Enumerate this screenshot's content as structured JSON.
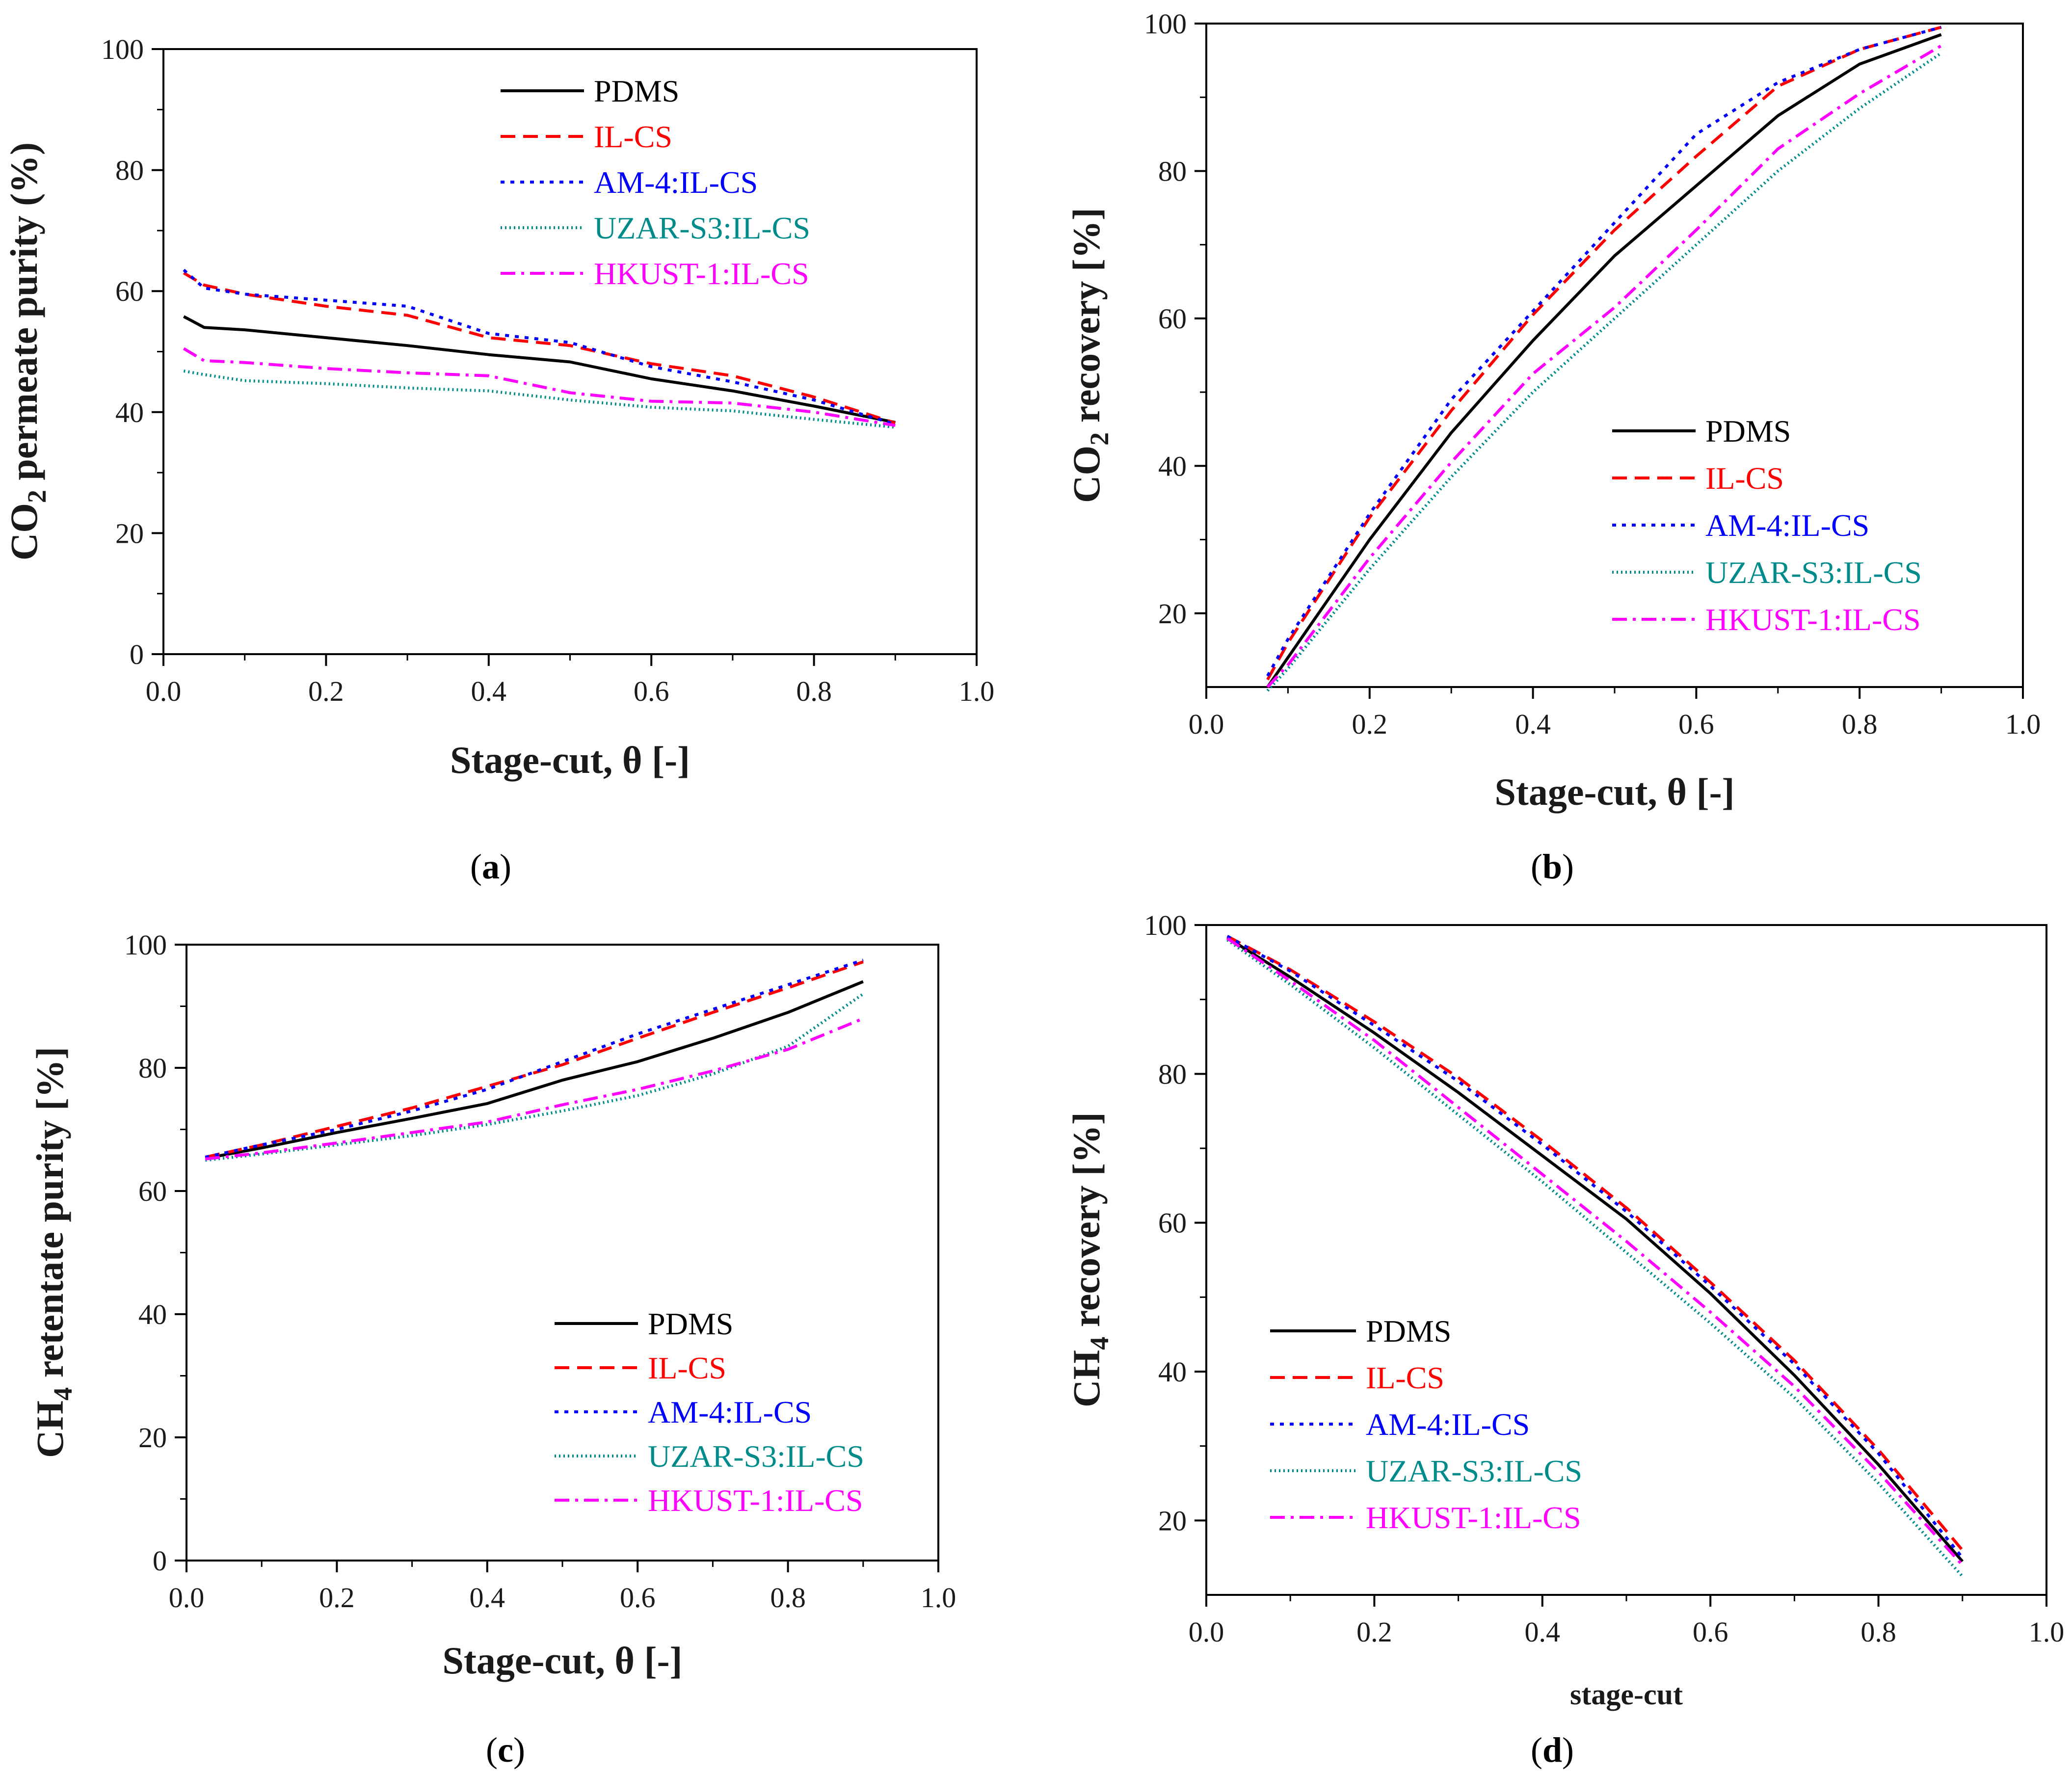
{
  "figure": {
    "captions": [
      {
        "pre": "(",
        "letter": "a",
        "post": ")"
      },
      {
        "pre": "(",
        "letter": "b",
        "post": ")"
      },
      {
        "pre": "(",
        "letter": "c",
        "post": ")"
      },
      {
        "pre": "(",
        "letter": "d",
        "post": ")"
      }
    ]
  },
  "chart_data": [
    {
      "type": "line",
      "panel": "a",
      "title": "",
      "xlabel": "Stage-cut, θ [-]",
      "ylabel": {
        "pre": "CO",
        "sub": "2",
        "post": " permeate purity (%)"
      },
      "xlim": [
        0.0,
        1.0
      ],
      "ylim": [
        0,
        100
      ],
      "xticks": [
        "0.0",
        "0.2",
        "0.4",
        "0.6",
        "0.8",
        "1.0"
      ],
      "yticks": [
        "0",
        "20",
        "40",
        "60",
        "80",
        "100"
      ],
      "legend_position": "top-center",
      "series": [
        {
          "name": "PDMS",
          "color": "#000000",
          "dash": "solid",
          "x": [
            0.025,
            0.05,
            0.1,
            0.2,
            0.3,
            0.4,
            0.5,
            0.6,
            0.7,
            0.8,
            0.9
          ],
          "y": [
            55.8,
            54.0,
            53.6,
            52.3,
            51.0,
            49.5,
            48.3,
            45.5,
            43.5,
            41.0,
            38.3
          ]
        },
        {
          "name": "IL-CS",
          "color": "#ff0000",
          "dash": "dash",
          "x": [
            0.025,
            0.05,
            0.1,
            0.2,
            0.3,
            0.4,
            0.5,
            0.6,
            0.7,
            0.8,
            0.9
          ],
          "y": [
            63.0,
            61.0,
            59.5,
            57.5,
            56.0,
            52.3,
            51.0,
            48.0,
            46.0,
            42.5,
            38.2
          ]
        },
        {
          "name": "AM-4:IL-CS",
          "color": "#0000ff",
          "dash": "dot",
          "x": [
            0.025,
            0.05,
            0.1,
            0.2,
            0.3,
            0.4,
            0.5,
            0.6,
            0.7,
            0.8,
            0.9
          ],
          "y": [
            63.5,
            60.5,
            59.5,
            58.5,
            57.5,
            53.0,
            51.5,
            47.5,
            45.0,
            42.0,
            38.0
          ]
        },
        {
          "name": "UZAR-S3:IL-CS",
          "color": "#008b8b",
          "dash": "fine-dot",
          "x": [
            0.025,
            0.05,
            0.1,
            0.2,
            0.3,
            0.4,
            0.5,
            0.6,
            0.7,
            0.8,
            0.9
          ],
          "y": [
            46.8,
            46.2,
            45.2,
            44.7,
            44.0,
            43.5,
            42.0,
            40.8,
            40.2,
            38.8,
            37.5
          ]
        },
        {
          "name": "HKUST-1:IL-CS",
          "color": "#ff00ff",
          "dash": "dashdot",
          "x": [
            0.025,
            0.05,
            0.1,
            0.2,
            0.3,
            0.4,
            0.5,
            0.6,
            0.7,
            0.8,
            0.9
          ],
          "y": [
            50.5,
            48.5,
            48.2,
            47.2,
            46.5,
            46.0,
            43.2,
            41.8,
            41.5,
            40.0,
            37.8
          ]
        }
      ]
    },
    {
      "type": "line",
      "panel": "b",
      "title": "",
      "xlabel": "Stage-cut, θ [-]",
      "ylabel": {
        "pre": "CO",
        "sub": "2",
        "post": " recovery [%]"
      },
      "xlim": [
        0.0,
        1.0
      ],
      "ylim": [
        10,
        100
      ],
      "xticks": [
        "0.0",
        "0.2",
        "0.4",
        "0.6",
        "0.8",
        "1.0"
      ],
      "yticks": [
        "20",
        "40",
        "60",
        "80",
        "100"
      ],
      "legend_position": "middle-right",
      "series": [
        {
          "name": "PDMS",
          "color": "#000000",
          "dash": "solid",
          "x": [
            0.075,
            0.1,
            0.2,
            0.3,
            0.4,
            0.5,
            0.6,
            0.7,
            0.8,
            0.9
          ],
          "y": [
            10.0,
            14.0,
            30.0,
            44.5,
            57.0,
            68.5,
            78.0,
            87.5,
            94.5,
            98.5
          ]
        },
        {
          "name": "IL-CS",
          "color": "#ff0000",
          "dash": "dash",
          "x": [
            0.075,
            0.1,
            0.2,
            0.3,
            0.4,
            0.5,
            0.6,
            0.7,
            0.8,
            0.9
          ],
          "y": [
            11.0,
            16.0,
            33.0,
            47.5,
            60.5,
            72.0,
            82.0,
            91.5,
            96.5,
            99.5
          ]
        },
        {
          "name": "AM-4:IL-CS",
          "color": "#0000ff",
          "dash": "dot",
          "x": [
            0.075,
            0.1,
            0.2,
            0.3,
            0.4,
            0.5,
            0.6,
            0.7,
            0.8,
            0.9
          ],
          "y": [
            11.5,
            16.5,
            33.5,
            49.0,
            61.0,
            73.0,
            85.0,
            92.0,
            96.5,
            99.5
          ]
        },
        {
          "name": "UZAR-S3:IL-CS",
          "color": "#008b8b",
          "dash": "fine-dot",
          "x": [
            0.075,
            0.1,
            0.2,
            0.3,
            0.4,
            0.5,
            0.6,
            0.7,
            0.8,
            0.9
          ],
          "y": [
            9.5,
            12.5,
            26.0,
            38.5,
            50.0,
            60.0,
            70.0,
            80.0,
            88.5,
            96.0
          ]
        },
        {
          "name": "HKUST-1:IL-CS",
          "color": "#ff00ff",
          "dash": "dashdot",
          "x": [
            0.075,
            0.1,
            0.2,
            0.3,
            0.4,
            0.5,
            0.6,
            0.7,
            0.8,
            0.9
          ],
          "y": [
            10.0,
            13.0,
            27.5,
            40.5,
            52.5,
            61.5,
            72.0,
            83.0,
            90.5,
            97.0
          ]
        }
      ]
    },
    {
      "type": "line",
      "panel": "c",
      "title": "",
      "xlabel": "Stage-cut, θ [-]",
      "ylabel": {
        "pre": "CH",
        "sub": "4",
        "post": " retentate purity [%]"
      },
      "xlim": [
        0.0,
        1.0
      ],
      "ylim": [
        0,
        100
      ],
      "xticks": [
        "0.0",
        "0.2",
        "0.4",
        "0.6",
        "0.8",
        "1.0"
      ],
      "yticks": [
        "0",
        "20",
        "40",
        "60",
        "80",
        "100"
      ],
      "legend_position": "bottom-right",
      "series": [
        {
          "name": "PDMS",
          "color": "#000000",
          "dash": "solid",
          "x": [
            0.025,
            0.1,
            0.2,
            0.3,
            0.4,
            0.5,
            0.6,
            0.7,
            0.8,
            0.9
          ],
          "y": [
            65.3,
            67.0,
            69.5,
            71.8,
            74.2,
            78.0,
            81.0,
            84.8,
            89.0,
            94.0
          ]
        },
        {
          "name": "IL-CS",
          "color": "#ff0000",
          "dash": "dash",
          "x": [
            0.025,
            0.1,
            0.2,
            0.3,
            0.4,
            0.5,
            0.6,
            0.7,
            0.8,
            0.9
          ],
          "y": [
            65.5,
            67.5,
            70.5,
            73.5,
            77.0,
            80.5,
            84.8,
            89.0,
            93.0,
            97.2
          ]
        },
        {
          "name": "AM-4:IL-CS",
          "color": "#0000ff",
          "dash": "dot",
          "x": [
            0.025,
            0.1,
            0.2,
            0.3,
            0.4,
            0.5,
            0.6,
            0.7,
            0.8,
            0.9
          ],
          "y": [
            65.5,
            67.5,
            70.0,
            73.0,
            76.5,
            81.0,
            85.5,
            89.5,
            93.5,
            97.5
          ]
        },
        {
          "name": "UZAR-S3:IL-CS",
          "color": "#008b8b",
          "dash": "fine-dot",
          "x": [
            0.025,
            0.1,
            0.2,
            0.3,
            0.4,
            0.5,
            0.6,
            0.7,
            0.8,
            0.9
          ],
          "y": [
            65.0,
            66.0,
            67.5,
            69.0,
            70.8,
            73.0,
            75.5,
            79.0,
            83.5,
            92.0
          ]
        },
        {
          "name": "HKUST-1:IL-CS",
          "color": "#ff00ff",
          "dash": "dashdot",
          "x": [
            0.025,
            0.1,
            0.2,
            0.3,
            0.4,
            0.5,
            0.6,
            0.7,
            0.8,
            0.9
          ],
          "y": [
            65.2,
            66.2,
            67.8,
            69.5,
            71.2,
            74.0,
            76.5,
            79.5,
            83.0,
            88.0
          ]
        }
      ]
    },
    {
      "type": "line",
      "panel": "d",
      "title": "",
      "xlabel": "stage-cut",
      "ylabel": {
        "pre": "CH",
        "sub": "4",
        "post": " recovery [%]"
      },
      "xlim": [
        0.0,
        1.0
      ],
      "ylim": [
        10,
        100
      ],
      "xticks": [
        "0.0",
        "0.2",
        "0.4",
        "0.6",
        "0.8",
        "1.0"
      ],
      "yticks": [
        "20",
        "40",
        "60",
        "80",
        "100"
      ],
      "legend_position": "bottom-left",
      "series": [
        {
          "name": "PDMS",
          "color": "#000000",
          "dash": "solid",
          "x": [
            0.025,
            0.1,
            0.2,
            0.3,
            0.4,
            0.5,
            0.6,
            0.7,
            0.8,
            0.9
          ],
          "y": [
            98.3,
            93.0,
            85.5,
            77.5,
            69.0,
            60.5,
            50.5,
            39.5,
            27.5,
            14.5
          ]
        },
        {
          "name": "IL-CS",
          "color": "#ff0000",
          "dash": "dash",
          "x": [
            0.025,
            0.1,
            0.2,
            0.3,
            0.4,
            0.5,
            0.6,
            0.7,
            0.8,
            0.9
          ],
          "y": [
            98.5,
            94.0,
            87.0,
            79.5,
            71.0,
            62.0,
            52.0,
            41.5,
            29.5,
            16.0
          ]
        },
        {
          "name": "AM-4:IL-CS",
          "color": "#0000ff",
          "dash": "dot",
          "x": [
            0.025,
            0.1,
            0.2,
            0.3,
            0.4,
            0.5,
            0.6,
            0.7,
            0.8,
            0.9
          ],
          "y": [
            98.5,
            93.8,
            86.5,
            79.0,
            70.5,
            61.5,
            51.5,
            41.0,
            29.0,
            15.0
          ]
        },
        {
          "name": "UZAR-S3:IL-CS",
          "color": "#008b8b",
          "dash": "fine-dot",
          "x": [
            0.025,
            0.1,
            0.2,
            0.3,
            0.4,
            0.5,
            0.6,
            0.7,
            0.8,
            0.9
          ],
          "y": [
            98.0,
            92.0,
            83.5,
            74.5,
            65.5,
            56.0,
            46.5,
            36.5,
            25.0,
            12.5
          ]
        },
        {
          "name": "HKUST-1:IL-CS",
          "color": "#ff00ff",
          "dash": "dashdot",
          "x": [
            0.025,
            0.1,
            0.2,
            0.3,
            0.4,
            0.5,
            0.6,
            0.7,
            0.8,
            0.9
          ],
          "y": [
            98.2,
            92.5,
            84.5,
            75.5,
            66.5,
            57.5,
            48.0,
            38.0,
            26.5,
            14.0
          ]
        }
      ]
    }
  ]
}
